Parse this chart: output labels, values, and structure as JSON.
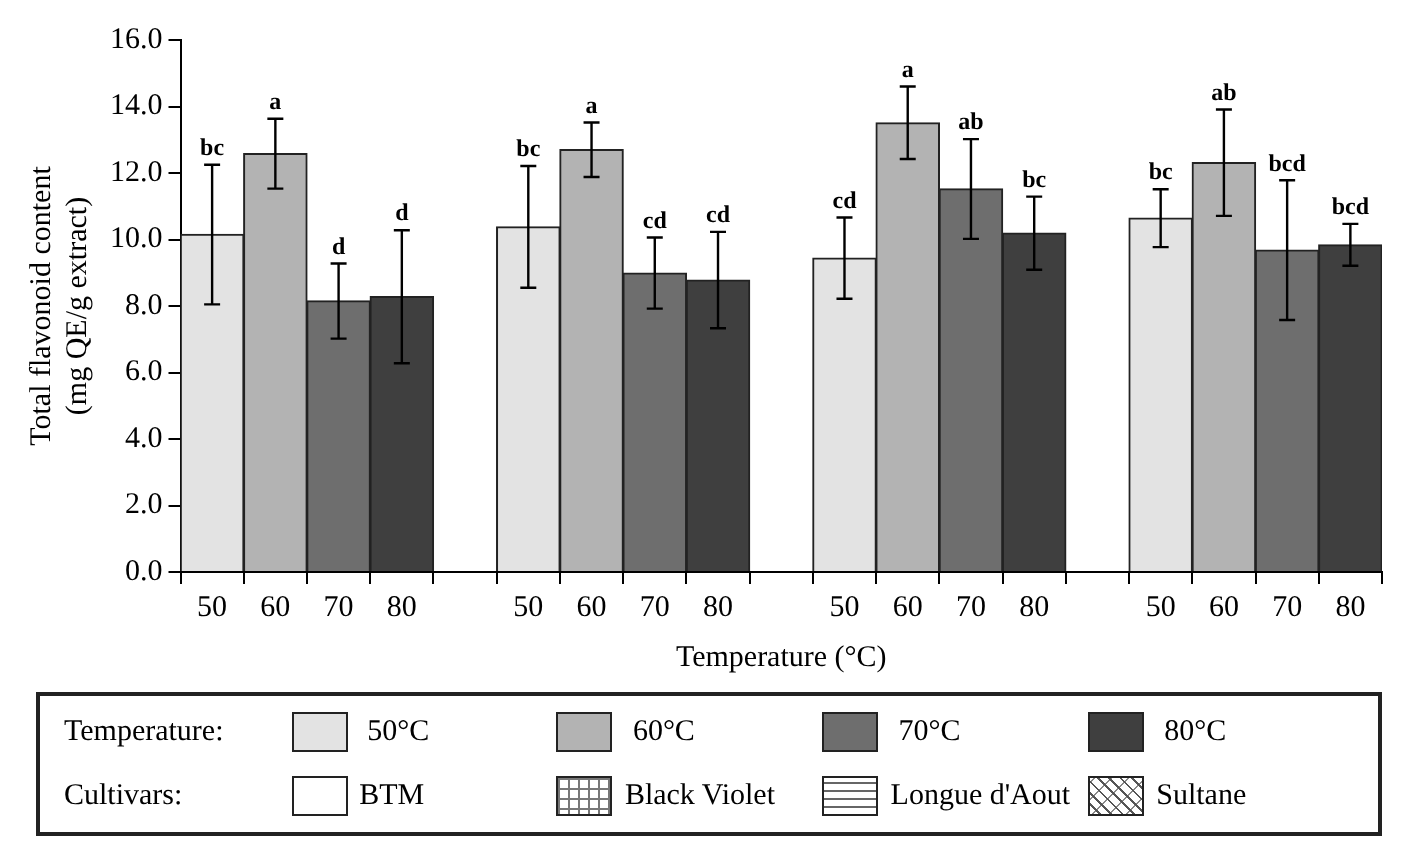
{
  "chart_data": {
    "type": "bar",
    "categories": [
      "50",
      "60",
      "70",
      "80",
      null,
      "50",
      "60",
      "70",
      "80",
      null,
      "50",
      "60",
      "70",
      "80",
      null,
      "50",
      "60",
      "70",
      "80"
    ],
    "series": [
      {
        "name": "50°C",
        "color": "#e3e3e3",
        "values": [
          10.15,
          null,
          null,
          null,
          null,
          10.38,
          null,
          null,
          null,
          null,
          9.44,
          null,
          null,
          null,
          null,
          10.64,
          null,
          null,
          null
        ],
        "errors": [
          2.1,
          null,
          null,
          null,
          null,
          1.83,
          null,
          null,
          null,
          null,
          1.22,
          null,
          null,
          null,
          null,
          0.87,
          null,
          null,
          null
        ],
        "value_labels": [
          "bc",
          null,
          null,
          null,
          null,
          "bc",
          null,
          null,
          null,
          null,
          "cd",
          null,
          null,
          null,
          null,
          "bc",
          null,
          null,
          null
        ]
      },
      {
        "name": "60°C",
        "color": "#b3b3b3",
        "values": [
          null,
          12.58,
          null,
          null,
          null,
          null,
          12.7,
          null,
          null,
          null,
          null,
          13.51,
          null,
          null,
          null,
          null,
          12.31,
          null,
          null
        ],
        "errors": [
          null,
          1.05,
          null,
          null,
          null,
          null,
          0.82,
          null,
          null,
          null,
          null,
          1.09,
          null,
          null,
          null,
          null,
          1.6,
          null,
          null
        ],
        "value_labels": [
          null,
          "a",
          null,
          null,
          null,
          null,
          "a",
          null,
          null,
          null,
          null,
          "a",
          null,
          null,
          null,
          null,
          "ab",
          null,
          null
        ]
      },
      {
        "name": "70°C",
        "color": "#6e6e6e",
        "values": [
          null,
          null,
          8.15,
          null,
          null,
          null,
          null,
          8.99,
          null,
          null,
          null,
          null,
          11.52,
          null,
          null,
          null,
          null,
          9.68,
          null
        ],
        "errors": [
          null,
          null,
          1.13,
          null,
          null,
          null,
          null,
          1.07,
          null,
          null,
          null,
          null,
          1.5,
          null,
          null,
          null,
          null,
          2.1,
          null
        ],
        "value_labels": [
          null,
          null,
          "d",
          null,
          null,
          null,
          null,
          "cd",
          null,
          null,
          null,
          null,
          "ab",
          null,
          null,
          null,
          null,
          "bcd",
          null
        ]
      },
      {
        "name": "80°C",
        "color": "#3f3f3f",
        "values": [
          null,
          null,
          null,
          8.28,
          null,
          null,
          null,
          null,
          8.78,
          null,
          null,
          null,
          null,
          10.19,
          null,
          null,
          null,
          null,
          9.84
        ],
        "errors": [
          null,
          null,
          null,
          2.0,
          null,
          null,
          null,
          null,
          1.45,
          null,
          null,
          null,
          null,
          1.1,
          null,
          null,
          null,
          null,
          0.63
        ],
        "value_labels": [
          null,
          null,
          null,
          "d",
          null,
          null,
          null,
          null,
          "cd",
          null,
          null,
          null,
          null,
          "bc",
          null,
          null,
          null,
          null,
          "bcd"
        ]
      }
    ],
    "xlabel": "Temperature (°C)",
    "ylabel": "Total flavonoid content\n(mg QE/g extract)",
    "ylim": [
      0,
      16
    ],
    "yticks": [
      {
        "value": 0,
        "label": "0.0"
      },
      {
        "value": 2,
        "label": "2.0"
      },
      {
        "value": 4,
        "label": "4.0"
      },
      {
        "value": 6,
        "label": "6.0"
      },
      {
        "value": 8,
        "label": "8.0"
      },
      {
        "value": 10,
        "label": "10.0"
      },
      {
        "value": 12,
        "label": "12.0"
      },
      {
        "value": 14,
        "label": "14.0"
      },
      {
        "value": 16,
        "label": "16.0"
      }
    ],
    "grid": false,
    "legend": "bottom",
    "legend_title": "Temperature:",
    "annotations": [
      "Cultivars:",
      "BTM",
      "Black Violet",
      "Longue d'Aout",
      "Sultane"
    ]
  }
}
